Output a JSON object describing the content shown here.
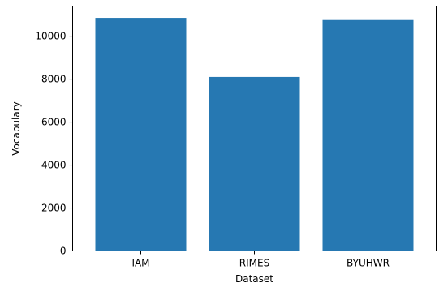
{
  "chart_data": {
    "type": "bar",
    "title": "",
    "xlabel": "Dataset",
    "ylabel": "Vocabulary",
    "categories": [
      "IAM",
      "RIMES",
      "BYUHWR"
    ],
    "values": [
      10850,
      8100,
      10750
    ],
    "ylim": [
      0,
      11400
    ],
    "yticks": [
      0,
      2000,
      4000,
      6000,
      8000,
      10000
    ],
    "grid": false,
    "legend": "none",
    "bar_color": "#2678b2"
  }
}
